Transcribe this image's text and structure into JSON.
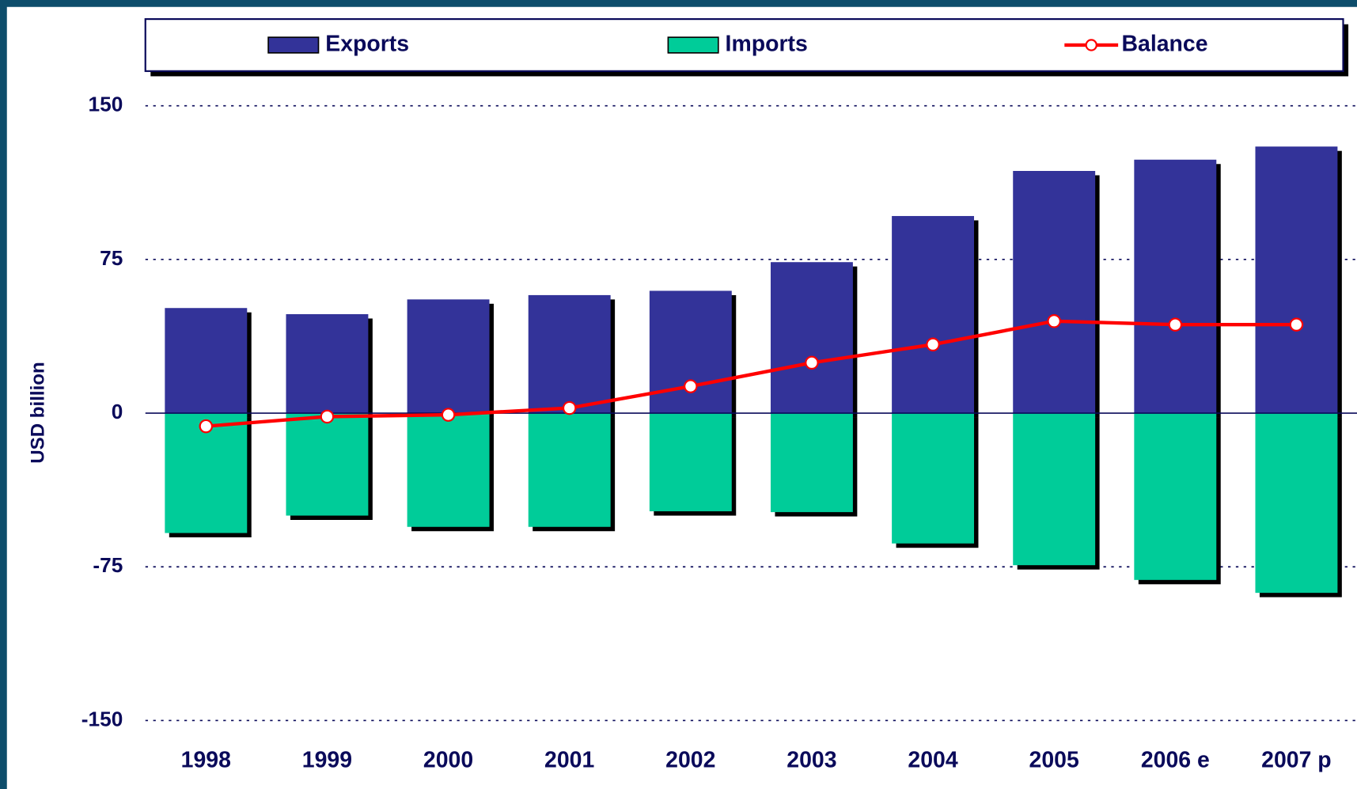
{
  "chart_data": {
    "type": "bar",
    "y_label": "USD billion",
    "categories": [
      "1998",
      "1999",
      "2000",
      "2001",
      "2002",
      "2003",
      "2004",
      "2005",
      "2006 e",
      "2007 p"
    ],
    "series": [
      {
        "name": "Exports",
        "type": "bar",
        "color": "#333399",
        "values": [
          51.3,
          48.3,
          55.5,
          57.6,
          59.7,
          73.7,
          96.2,
          118.2,
          123.7,
          130.1
        ]
      },
      {
        "name": "Imports",
        "type": "bar",
        "color": "#00cc99",
        "values": [
          -58.5,
          -50,
          -55.5,
          -55.5,
          -47.9,
          -48.3,
          -63.6,
          -74.2,
          -81.4,
          -87.7
        ]
      },
      {
        "name": "Balance",
        "type": "line",
        "color": "#ff0000",
        "values": [
          -6.4,
          -1.7,
          -0.8,
          2.5,
          13.1,
          24.6,
          33.5,
          44.9,
          43.2,
          43.2
        ]
      }
    ],
    "ylim": [
      -150,
      150
    ],
    "yticks": [
      -150,
      -75,
      0,
      75,
      150
    ],
    "grid": true,
    "legend": "top"
  }
}
